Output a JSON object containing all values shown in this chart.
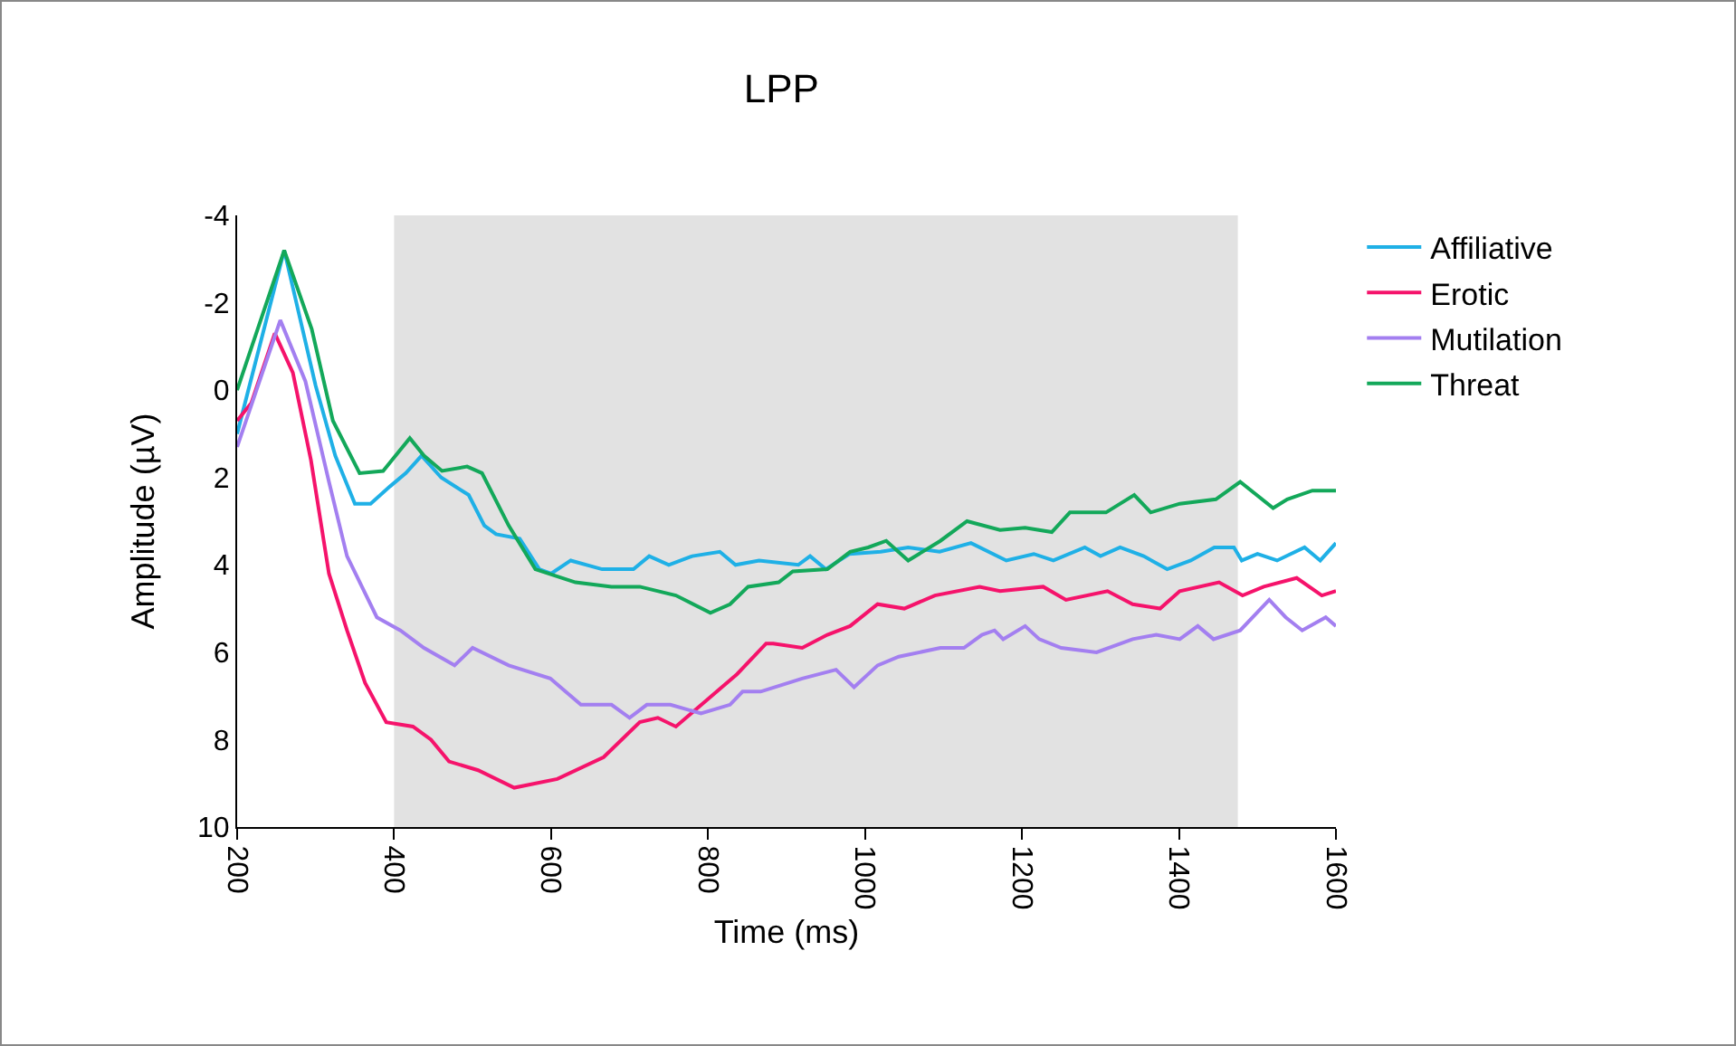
{
  "chart_data": {
    "type": "line",
    "title": "LPP",
    "xlabel": "Time (ms)",
    "ylabel": "Amplitude (µV)",
    "xlim": [
      200,
      1600
    ],
    "xticks": [
      200,
      400,
      600,
      800,
      1000,
      1200,
      1400,
      1600
    ],
    "ylim": [
      10,
      -4
    ],
    "yticks": [
      -4,
      -2,
      0,
      2,
      4,
      6,
      8,
      10
    ],
    "grid": false,
    "legend": "right",
    "marker": "none",
    "line_style": "solid",
    "bands": [
      {
        "axis": "x",
        "from": 400,
        "to": 1475,
        "color": "#e2e2e2"
      }
    ],
    "series": [
      {
        "name": "Affiliative",
        "color": "#1fb0e6",
        "x": [
          200,
          260,
          300,
          325,
          350,
          370,
          395,
          415,
          435,
          460,
          495,
          515,
          530,
          560,
          585,
          600,
          625,
          665,
          705,
          725,
          750,
          780,
          815,
          835,
          865,
          915,
          930,
          950,
          980,
          1020,
          1055,
          1095,
          1135,
          1180,
          1215,
          1240,
          1280,
          1300,
          1325,
          1355,
          1385,
          1415,
          1445,
          1470,
          1480,
          1500,
          1525,
          1560,
          1580,
          1600
        ],
        "values": [
          1.0,
          -3.2,
          -0.1,
          1.5,
          2.6,
          2.6,
          2.2,
          1.9,
          1.5,
          2.0,
          2.4,
          3.1,
          3.3,
          3.4,
          4.1,
          4.2,
          3.9,
          4.1,
          4.1,
          3.8,
          4.0,
          3.8,
          3.7,
          4.0,
          3.9,
          4.0,
          3.8,
          4.1,
          3.75,
          3.7,
          3.6,
          3.7,
          3.5,
          3.9,
          3.75,
          3.9,
          3.6,
          3.8,
          3.6,
          3.8,
          4.1,
          3.9,
          3.6,
          3.6,
          3.9,
          3.75,
          3.9,
          3.6,
          3.9,
          3.5
        ]
      },
      {
        "name": "Erotic",
        "color": "#f5136b",
        "x": [
          200,
          218,
          248,
          271,
          294,
          317,
          340,
          363,
          390,
          424,
          447,
          470,
          507,
          553,
          608,
          667,
          713,
          736,
          759,
          798,
          837,
          874,
          883,
          920,
          952,
          981,
          1016,
          1050,
          1089,
          1146,
          1172,
          1227,
          1256,
          1309,
          1341,
          1376,
          1401,
          1451,
          1481,
          1508,
          1550,
          1582,
          1600
        ],
        "values": [
          0.7,
          0.3,
          -1.3,
          -0.4,
          1.6,
          4.2,
          5.5,
          6.7,
          7.6,
          7.7,
          8.0,
          8.5,
          8.7,
          9.1,
          8.9,
          8.4,
          7.6,
          7.5,
          7.7,
          7.1,
          6.5,
          5.8,
          5.8,
          5.9,
          5.6,
          5.4,
          4.9,
          5.0,
          4.7,
          4.5,
          4.6,
          4.5,
          4.8,
          4.6,
          4.9,
          5.0,
          4.6,
          4.4,
          4.7,
          4.5,
          4.3,
          4.7,
          4.6
        ]
      },
      {
        "name": "Mutilation",
        "color": "#a37ff0",
        "x": [
          200,
          255,
          287,
          317,
          340,
          378,
          408,
          438,
          477,
          500,
          546,
          599,
          638,
          677,
          700,
          722,
          752,
          791,
          828,
          844,
          867,
          920,
          963,
          986,
          1016,
          1043,
          1096,
          1126,
          1149,
          1165,
          1176,
          1204,
          1222,
          1250,
          1295,
          1341,
          1371,
          1401,
          1424,
          1444,
          1478,
          1515,
          1536,
          1557,
          1587,
          1600
        ],
        "values": [
          1.3,
          -1.6,
          -0.2,
          2.1,
          3.8,
          5.2,
          5.5,
          5.9,
          6.3,
          5.9,
          6.3,
          6.6,
          7.2,
          7.2,
          7.5,
          7.2,
          7.2,
          7.4,
          7.2,
          6.9,
          6.9,
          6.6,
          6.4,
          6.8,
          6.3,
          6.1,
          5.9,
          5.9,
          5.6,
          5.5,
          5.7,
          5.4,
          5.7,
          5.9,
          6.0,
          5.7,
          5.6,
          5.7,
          5.4,
          5.7,
          5.5,
          4.8,
          5.2,
          5.5,
          5.2,
          5.4
        ]
      },
      {
        "name": "Threat",
        "color": "#13a85a",
        "x": [
          200,
          260,
          295,
          322,
          356,
          386,
          420,
          438,
          461,
          493,
          512,
          546,
          580,
          631,
          677,
          713,
          759,
          803,
          828,
          851,
          890,
          908,
          952,
          981,
          1004,
          1027,
          1055,
          1096,
          1130,
          1172,
          1204,
          1238,
          1261,
          1307,
          1343,
          1364,
          1401,
          1447,
          1478,
          1520,
          1538,
          1570,
          1600
        ],
        "values": [
          0.0,
          -3.2,
          -1.4,
          0.7,
          1.9,
          1.85,
          1.1,
          1.5,
          1.85,
          1.75,
          1.9,
          3.1,
          4.1,
          4.4,
          4.5,
          4.5,
          4.7,
          5.1,
          4.9,
          4.5,
          4.4,
          4.15,
          4.1,
          3.7,
          3.6,
          3.45,
          3.9,
          3.45,
          3.0,
          3.2,
          3.15,
          3.25,
          2.8,
          2.8,
          2.4,
          2.8,
          2.6,
          2.5,
          2.1,
          2.7,
          2.5,
          2.3,
          2.3
        ]
      }
    ]
  }
}
